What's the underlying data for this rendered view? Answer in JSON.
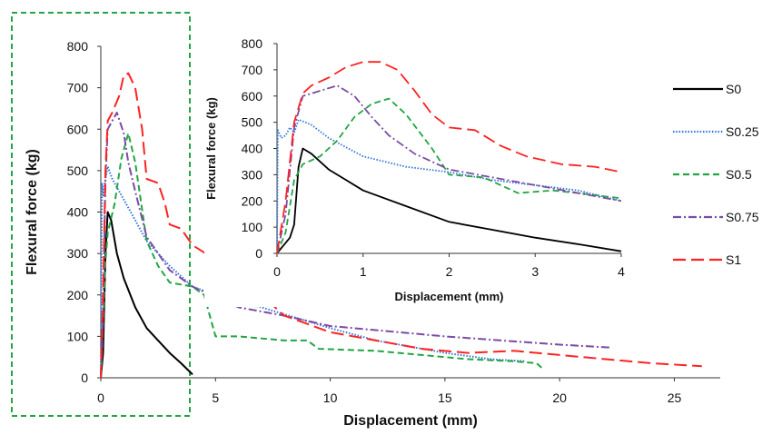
{
  "chart_data": [
    {
      "type": "line",
      "title": "",
      "xlabel": "Displacement (mm)",
      "ylabel": "Flexural force (kg)",
      "xlim": [
        0,
        27
      ],
      "ylim": [
        0,
        800
      ],
      "xticks": [
        "0",
        "5",
        "10",
        "15",
        "20",
        "25"
      ],
      "yticks": [
        "0",
        "100",
        "200",
        "300",
        "400",
        "500",
        "600",
        "700",
        "800"
      ],
      "grid": false,
      "legend": "right",
      "highlight_box": "dashed green box around x 0 to 4 mm",
      "series": [
        {
          "name": "S0",
          "color": "#000000",
          "dash": "solid",
          "points": [
            [
              0,
              0
            ],
            [
              0.1,
              60
            ],
            [
              0.2,
              300
            ],
            [
              0.3,
              400
            ],
            [
              0.45,
              380
            ],
            [
              0.7,
              300
            ],
            [
              1.0,
              240
            ],
            [
              1.5,
              170
            ],
            [
              2.0,
              120
            ],
            [
              2.5,
              90
            ],
            [
              3.0,
              60
            ],
            [
              3.5,
              35
            ],
            [
              4.0,
              8
            ]
          ]
        },
        {
          "name": "S0.25",
          "color": "#2e75d6",
          "dash": "dotted",
          "points": [
            [
              0,
              0
            ],
            [
              0.05,
              470
            ],
            [
              0.1,
              440
            ],
            [
              0.2,
              480
            ],
            [
              0.3,
              510
            ],
            [
              0.5,
              480
            ],
            [
              1.0,
              430
            ],
            [
              2.0,
              330
            ],
            [
              3.0,
              270
            ],
            [
              4.0,
              220
            ],
            [
              5.0,
              200
            ],
            [
              7.0,
              170
            ],
            [
              10.0,
              120
            ],
            [
              12.0,
              90
            ],
            [
              15.0,
              60
            ],
            [
              17.0,
              45
            ],
            [
              18.5,
              40
            ]
          ]
        },
        {
          "name": "S0.5",
          "color": "#22a544",
          "dash": "dashed",
          "points": [
            [
              0,
              0
            ],
            [
              0.2,
              280
            ],
            [
              0.3,
              350
            ],
            [
              0.6,
              420
            ],
            [
              0.9,
              530
            ],
            [
              1.2,
              590
            ],
            [
              1.5,
              520
            ],
            [
              2.0,
              330
            ],
            [
              2.5,
              270
            ],
            [
              3.0,
              230
            ],
            [
              4.0,
              220
            ],
            [
              4.5,
              200
            ],
            [
              5.0,
              100
            ],
            [
              6.0,
              100
            ],
            [
              8.0,
              90
            ],
            [
              9.0,
              90
            ],
            [
              9.5,
              70
            ],
            [
              12.0,
              65
            ],
            [
              14.0,
              55
            ],
            [
              16.0,
              45
            ],
            [
              18.0,
              40
            ],
            [
              19.0,
              35
            ],
            [
              19.3,
              20
            ]
          ]
        },
        {
          "name": "S0.75",
          "color": "#7b4ba5",
          "dash": "dashdot",
          "points": [
            [
              0,
              0
            ],
            [
              0.1,
              150
            ],
            [
              0.2,
              480
            ],
            [
              0.3,
              600
            ],
            [
              0.5,
              620
            ],
            [
              0.7,
              640
            ],
            [
              1.0,
              590
            ],
            [
              1.2,
              520
            ],
            [
              1.5,
              450
            ],
            [
              2.0,
              340
            ],
            [
              3.0,
              260
            ],
            [
              4.0,
              220
            ],
            [
              6.0,
              170
            ],
            [
              8.0,
              150
            ],
            [
              10.0,
              125
            ],
            [
              15.0,
              100
            ],
            [
              20.0,
              80
            ],
            [
              22.2,
              73
            ]
          ]
        },
        {
          "name": "S1",
          "color": "#ff2222",
          "dash": "longdash",
          "points": [
            [
              0,
              0
            ],
            [
              0.1,
              200
            ],
            [
              0.2,
              500
            ],
            [
              0.3,
              620
            ],
            [
              0.5,
              640
            ],
            [
              0.8,
              680
            ],
            [
              1.0,
              730
            ],
            [
              1.2,
              735
            ],
            [
              1.5,
              700
            ],
            [
              1.8,
              600
            ],
            [
              2.0,
              480
            ],
            [
              2.5,
              470
            ],
            [
              2.8,
              420
            ],
            [
              3.0,
              370
            ],
            [
              3.5,
              360
            ],
            [
              4.0,
              320
            ],
            [
              6.0,
              250
            ],
            [
              8.0,
              150
            ],
            [
              10.0,
              110
            ],
            [
              14.0,
              70
            ],
            [
              16.0,
              60
            ],
            [
              18.0,
              65
            ],
            [
              20.0,
              55
            ],
            [
              22.0,
              45
            ],
            [
              24.0,
              35
            ],
            [
              26.2,
              28
            ]
          ]
        }
      ]
    },
    {
      "type": "line",
      "title": "",
      "xlabel": "Displacement (mm)",
      "ylabel": "Flexural force (kg)",
      "xlim": [
        0,
        4
      ],
      "ylim": [
        0,
        800
      ],
      "xticks": [
        "0",
        "1",
        "2",
        "3",
        "4"
      ],
      "yticks": [
        "0",
        "100",
        "200",
        "300",
        "400",
        "500",
        "600",
        "700",
        "800"
      ],
      "grid": false,
      "legend": "none",
      "series": [
        {
          "name": "S0",
          "color": "#000000",
          "dash": "solid",
          "points": [
            [
              0,
              0
            ],
            [
              0.05,
              20
            ],
            [
              0.1,
              40
            ],
            [
              0.15,
              60
            ],
            [
              0.2,
              110
            ],
            [
              0.25,
              330
            ],
            [
              0.3,
              400
            ],
            [
              0.4,
              380
            ],
            [
              0.6,
              320
            ],
            [
              1.0,
              240
            ],
            [
              1.5,
              180
            ],
            [
              2.0,
              120
            ],
            [
              2.5,
              90
            ],
            [
              3.0,
              60
            ],
            [
              3.5,
              35
            ],
            [
              4.0,
              8
            ]
          ]
        },
        {
          "name": "S0.25",
          "color": "#2e75d6",
          "dash": "dotted",
          "points": [
            [
              0,
              0
            ],
            [
              0.01,
              470
            ],
            [
              0.05,
              440
            ],
            [
              0.1,
              450
            ],
            [
              0.15,
              480
            ],
            [
              0.2,
              460
            ],
            [
              0.25,
              510
            ],
            [
              0.4,
              490
            ],
            [
              0.6,
              440
            ],
            [
              1.0,
              370
            ],
            [
              1.5,
              330
            ],
            [
              2.0,
              310
            ],
            [
              2.5,
              280
            ],
            [
              3.0,
              260
            ],
            [
              3.5,
              240
            ],
            [
              4.0,
              200
            ]
          ]
        },
        {
          "name": "S0.5",
          "color": "#22a544",
          "dash": "dashed",
          "points": [
            [
              0,
              0
            ],
            [
              0.1,
              80
            ],
            [
              0.2,
              280
            ],
            [
              0.3,
              340
            ],
            [
              0.5,
              370
            ],
            [
              0.7,
              430
            ],
            [
              0.9,
              520
            ],
            [
              1.1,
              570
            ],
            [
              1.3,
              590
            ],
            [
              1.5,
              530
            ],
            [
              1.8,
              400
            ],
            [
              2.0,
              300
            ],
            [
              2.4,
              290
            ],
            [
              2.8,
              230
            ],
            [
              3.2,
              240
            ],
            [
              3.5,
              230
            ],
            [
              4.0,
              210
            ]
          ]
        },
        {
          "name": "S0.75",
          "color": "#7b4ba5",
          "dash": "dashdot",
          "points": [
            [
              0,
              0
            ],
            [
              0.1,
              150
            ],
            [
              0.2,
              480
            ],
            [
              0.3,
              600
            ],
            [
              0.5,
              620
            ],
            [
              0.7,
              640
            ],
            [
              0.9,
              600
            ],
            [
              1.1,
              520
            ],
            [
              1.3,
              450
            ],
            [
              1.6,
              380
            ],
            [
              2.0,
              320
            ],
            [
              2.5,
              290
            ],
            [
              3.0,
              260
            ],
            [
              3.5,
              230
            ],
            [
              4.0,
              200
            ]
          ]
        },
        {
          "name": "S1",
          "color": "#ff2222",
          "dash": "longdash",
          "points": [
            [
              0,
              0
            ],
            [
              0.1,
              200
            ],
            [
              0.2,
              500
            ],
            [
              0.3,
              610
            ],
            [
              0.4,
              640
            ],
            [
              0.6,
              670
            ],
            [
              0.8,
              710
            ],
            [
              1.0,
              730
            ],
            [
              1.2,
              730
            ],
            [
              1.4,
              700
            ],
            [
              1.6,
              620
            ],
            [
              1.8,
              530
            ],
            [
              2.0,
              480
            ],
            [
              2.3,
              470
            ],
            [
              2.6,
              410
            ],
            [
              2.9,
              370
            ],
            [
              3.3,
              340
            ],
            [
              3.7,
              330
            ],
            [
              4.0,
              310
            ]
          ]
        }
      ]
    }
  ]
}
